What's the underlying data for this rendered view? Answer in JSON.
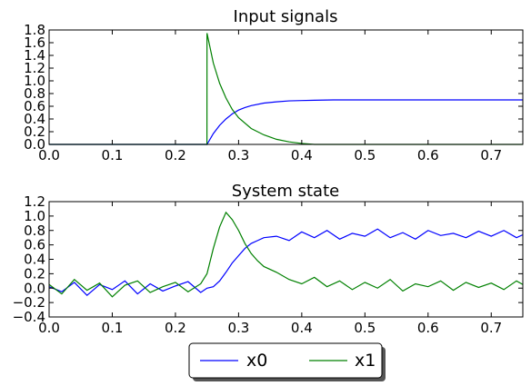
{
  "chart_data": [
    {
      "type": "line",
      "title": "Input signals",
      "xlabel": "",
      "ylabel": "",
      "xlim": [
        0.0,
        0.75
      ],
      "ylim": [
        0.0,
        1.8
      ],
      "xticks": [
        "0.0",
        "0.1",
        "0.2",
        "0.3",
        "0.4",
        "0.5",
        "0.6",
        "0.7"
      ],
      "yticks": [
        "0.0",
        "0.2",
        "0.4",
        "0.6",
        "0.8",
        "1.0",
        "1.2",
        "1.4",
        "1.6",
        "1.8"
      ],
      "grid": false,
      "series": [
        {
          "name": "x0",
          "color": "#0000ff",
          "x": [
            0.0,
            0.25,
            0.26,
            0.27,
            0.28,
            0.29,
            0.3,
            0.31,
            0.32,
            0.34,
            0.36,
            0.38,
            0.4,
            0.42,
            0.45,
            0.5,
            0.55,
            0.6,
            0.65,
            0.7,
            0.75
          ],
          "y": [
            0.0,
            0.0,
            0.17,
            0.3,
            0.4,
            0.48,
            0.54,
            0.58,
            0.61,
            0.65,
            0.67,
            0.685,
            0.69,
            0.695,
            0.7,
            0.7,
            0.7,
            0.7,
            0.7,
            0.7,
            0.7
          ]
        },
        {
          "name": "x1",
          "color": "#008000",
          "x": [
            0.0,
            0.2499,
            0.25,
            0.26,
            0.27,
            0.28,
            0.29,
            0.3,
            0.32,
            0.34,
            0.36,
            0.38,
            0.4,
            0.42,
            0.45,
            0.5,
            0.55,
            0.6,
            0.65,
            0.7,
            0.75
          ],
          "y": [
            0.0,
            0.0,
            1.75,
            1.28,
            0.96,
            0.73,
            0.55,
            0.42,
            0.25,
            0.15,
            0.08,
            0.04,
            0.015,
            0.0,
            0.0,
            0.0,
            0.0,
            0.0,
            0.0,
            0.0,
            0.0
          ]
        }
      ]
    },
    {
      "type": "line",
      "title": "System state",
      "xlabel": "",
      "ylabel": "",
      "xlim": [
        0.0,
        0.75
      ],
      "ylim": [
        -0.4,
        1.2
      ],
      "xticks": [
        "0.0",
        "0.1",
        "0.2",
        "0.3",
        "0.4",
        "0.5",
        "0.6",
        "0.7"
      ],
      "yticks": [
        "−0.4",
        "−0.2",
        "0.0",
        "0.2",
        "0.4",
        "0.6",
        "0.8",
        "1.0",
        "1.2"
      ],
      "grid": false,
      "legend": {
        "placement": "bottom-center",
        "ncol": 2,
        "entries": [
          "x0",
          "x1"
        ]
      },
      "series": [
        {
          "name": "x0",
          "color": "#0000ff",
          "x": [
            0.0,
            0.02,
            0.04,
            0.06,
            0.08,
            0.1,
            0.12,
            0.14,
            0.16,
            0.18,
            0.2,
            0.22,
            0.24,
            0.25,
            0.26,
            0.27,
            0.28,
            0.29,
            0.3,
            0.31,
            0.32,
            0.33,
            0.34,
            0.36,
            0.38,
            0.4,
            0.42,
            0.44,
            0.46,
            0.48,
            0.5,
            0.52,
            0.54,
            0.56,
            0.58,
            0.6,
            0.62,
            0.64,
            0.66,
            0.68,
            0.7,
            0.72,
            0.74,
            0.75
          ],
          "y": [
            0.02,
            -0.05,
            0.08,
            -0.1,
            0.05,
            -0.02,
            0.1,
            -0.08,
            0.06,
            -0.04,
            0.03,
            0.09,
            -0.06,
            0.0,
            0.02,
            0.1,
            0.22,
            0.35,
            0.45,
            0.55,
            0.62,
            0.66,
            0.7,
            0.72,
            0.66,
            0.78,
            0.7,
            0.8,
            0.68,
            0.76,
            0.72,
            0.82,
            0.7,
            0.77,
            0.68,
            0.8,
            0.73,
            0.76,
            0.7,
            0.79,
            0.72,
            0.8,
            0.7,
            0.74
          ]
        },
        {
          "name": "x1",
          "color": "#008000",
          "x": [
            0.0,
            0.02,
            0.04,
            0.06,
            0.08,
            0.1,
            0.12,
            0.14,
            0.16,
            0.18,
            0.2,
            0.22,
            0.24,
            0.25,
            0.26,
            0.27,
            0.28,
            0.29,
            0.3,
            0.31,
            0.32,
            0.33,
            0.34,
            0.36,
            0.38,
            0.4,
            0.42,
            0.44,
            0.46,
            0.48,
            0.5,
            0.52,
            0.54,
            0.56,
            0.58,
            0.6,
            0.62,
            0.64,
            0.66,
            0.68,
            0.7,
            0.72,
            0.74,
            0.75
          ],
          "y": [
            0.05,
            -0.08,
            0.12,
            -0.03,
            0.07,
            -0.12,
            0.04,
            0.1,
            -0.06,
            0.02,
            0.08,
            -0.05,
            0.06,
            0.2,
            0.55,
            0.85,
            1.05,
            0.95,
            0.8,
            0.62,
            0.48,
            0.38,
            0.3,
            0.22,
            0.12,
            0.06,
            0.15,
            0.02,
            0.1,
            -0.02,
            0.08,
            0.0,
            0.12,
            -0.04,
            0.06,
            0.02,
            0.1,
            -0.03,
            0.08,
            0.01,
            0.07,
            -0.02,
            0.1,
            0.05
          ]
        }
      ]
    }
  ]
}
